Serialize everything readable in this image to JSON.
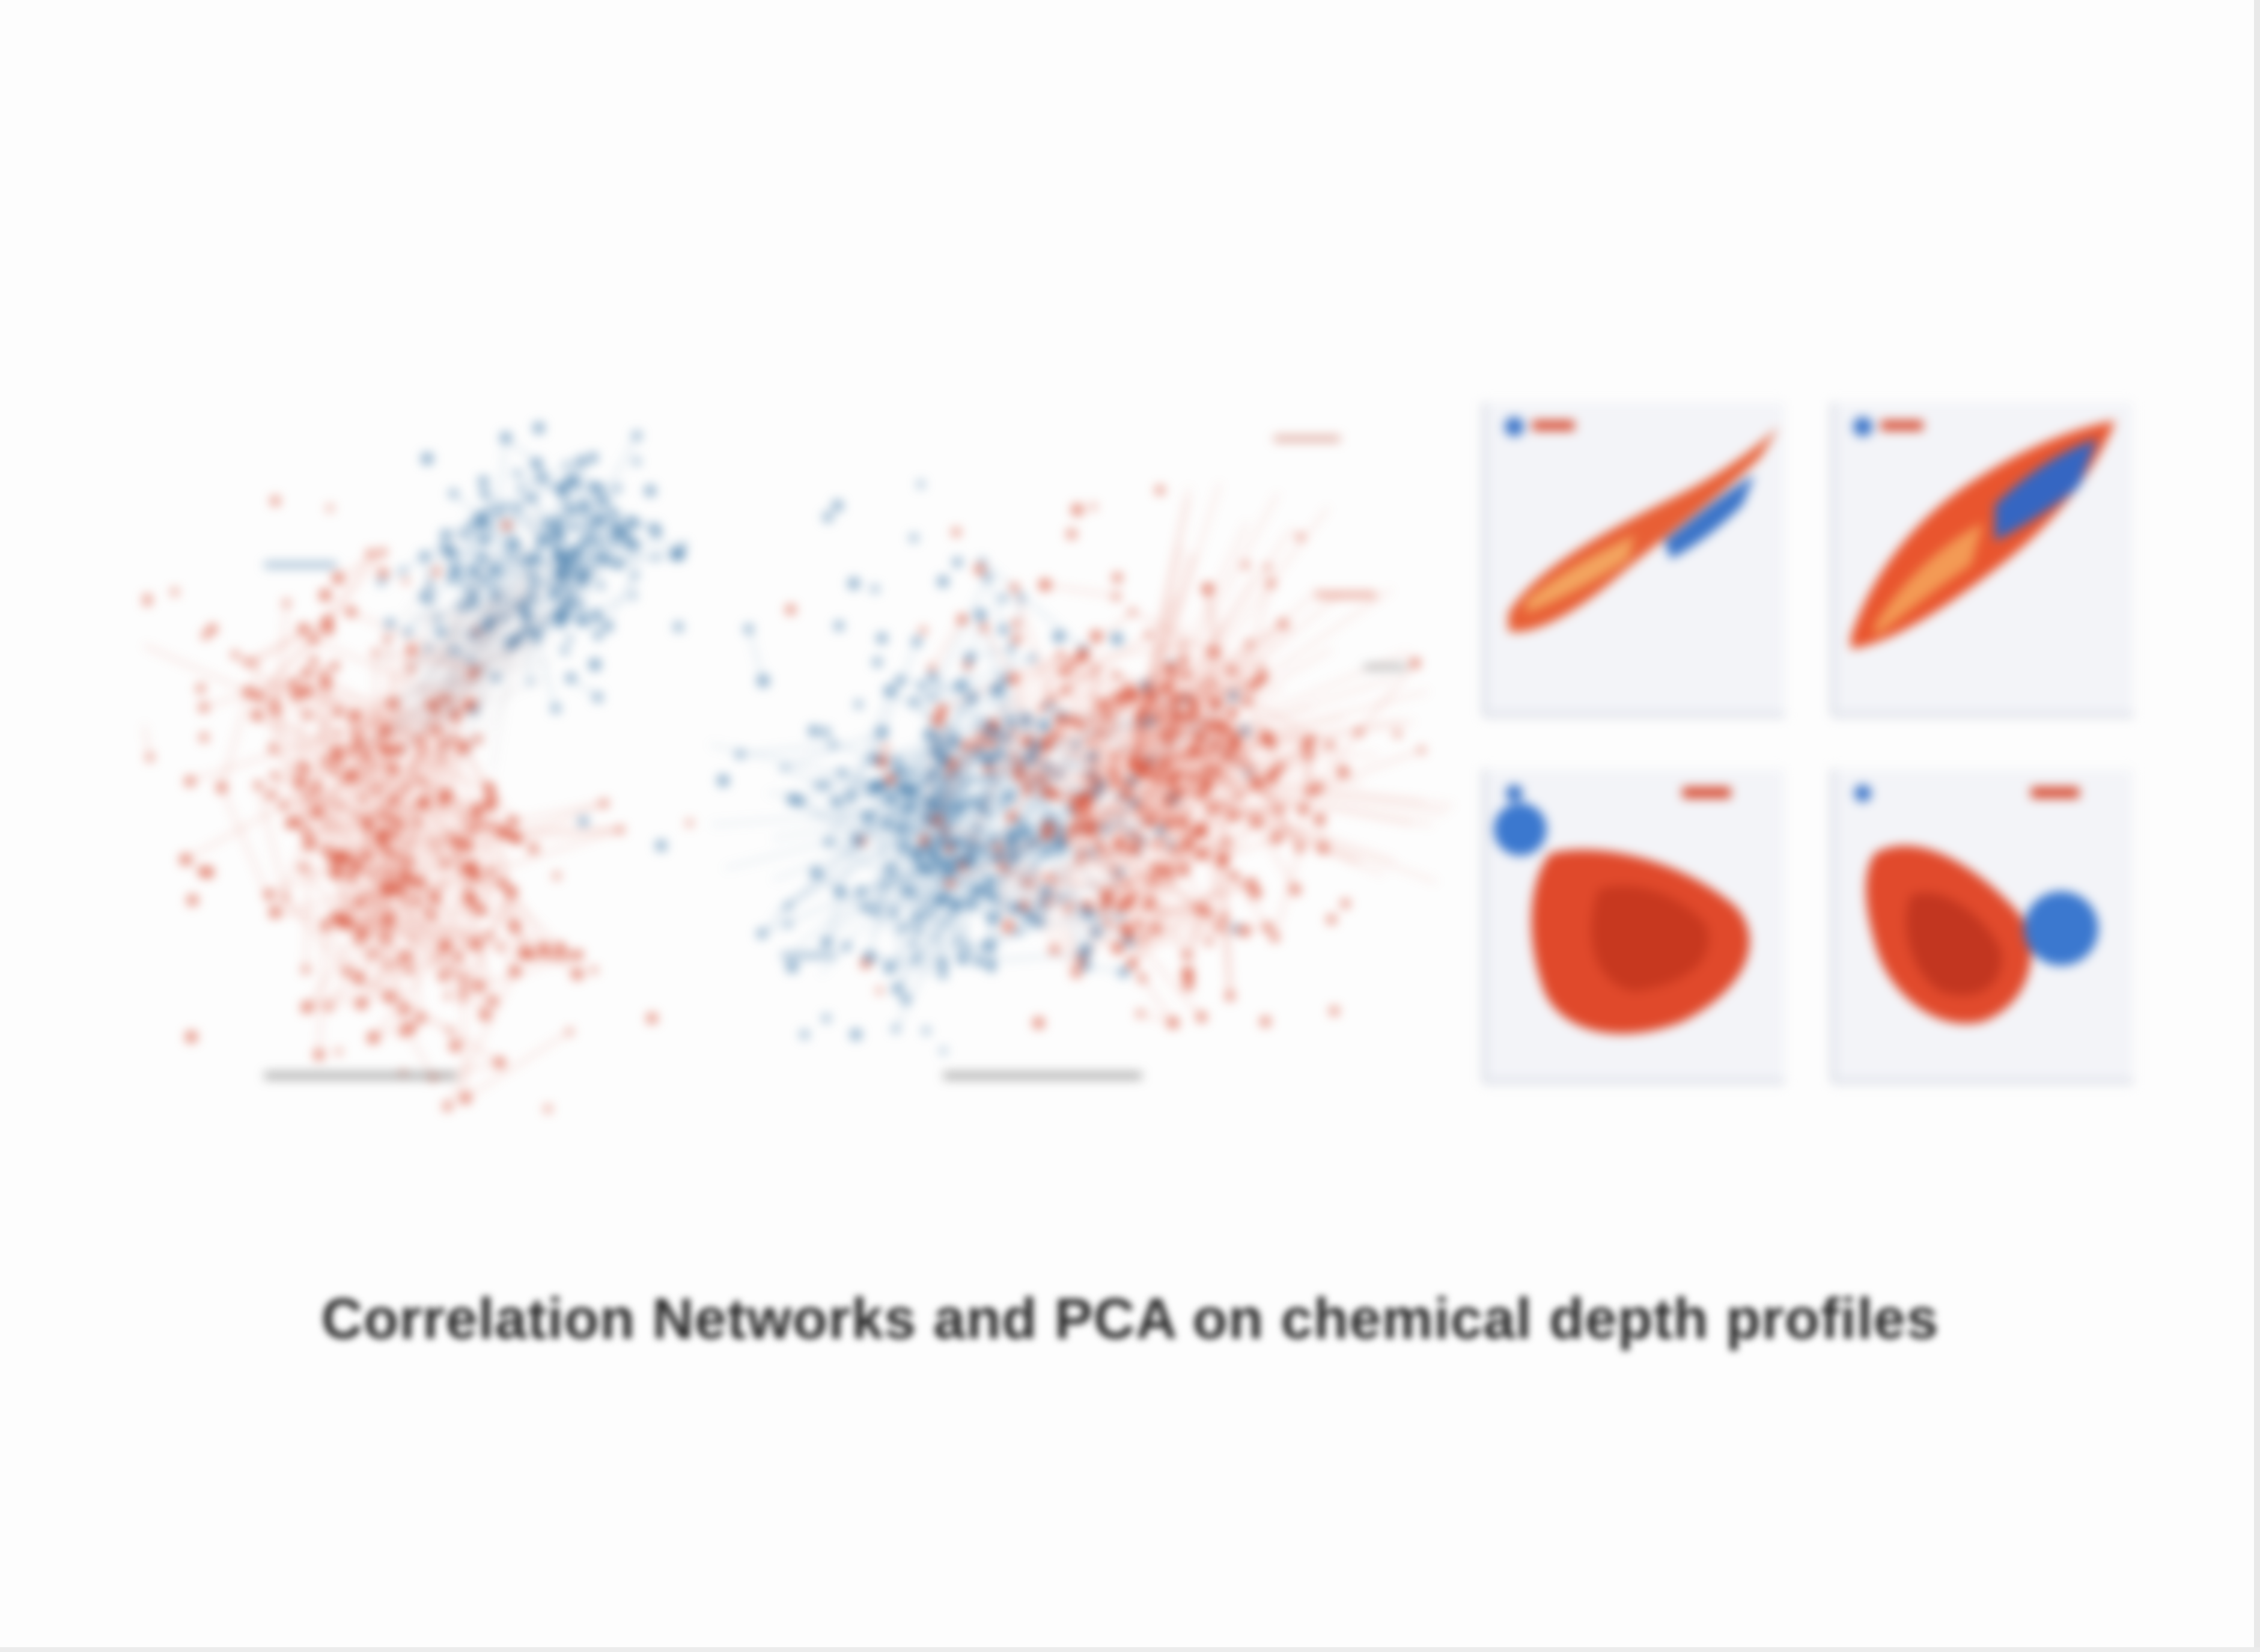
{
  "caption": "Correlation Networks and PCA on chemical depth profiles",
  "colors": {
    "blue": "#3f78a8",
    "red": "#d6452a",
    "orange": "#f0a15a",
    "background": "#fdfdfd",
    "panel_bg": "#f3f4f8"
  },
  "panels": [
    {
      "kind": "network",
      "name": "correlation-network-left"
    },
    {
      "kind": "network",
      "name": "correlation-network-middle"
    },
    {
      "kind": "density-scatter",
      "name": "pca-panel-top-left"
    },
    {
      "kind": "density-scatter",
      "name": "pca-panel-top-right"
    },
    {
      "kind": "density-scatter",
      "name": "pca-panel-bottom-left"
    },
    {
      "kind": "density-scatter",
      "name": "pca-panel-bottom-right"
    }
  ]
}
